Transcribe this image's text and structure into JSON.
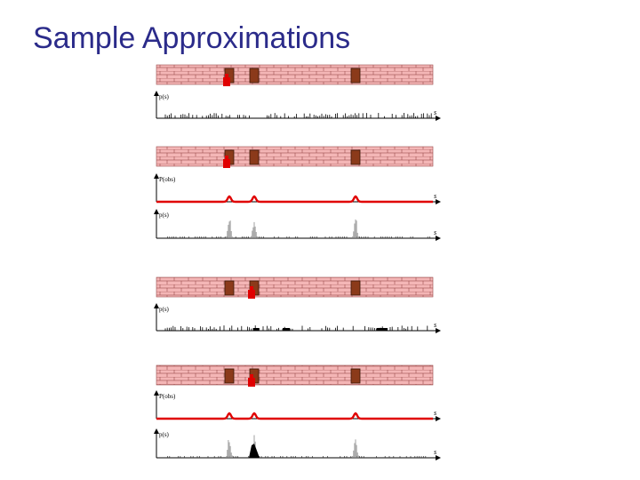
{
  "slide": {
    "title": "Sample Approximations"
  },
  "colors": {
    "title": "#2b2b8a",
    "wall": "#f4b6b6",
    "brick_line": "#9a4a4a",
    "door": "#8b3a1a",
    "robot": "#e00000",
    "observation_curve": "#e00000",
    "samples": "#000000",
    "weighted_samples": "#888888"
  },
  "panels": [
    {
      "step": "initial",
      "robot_icon": "robot-icon",
      "plots": [
        {
          "kind": "samples",
          "ylabel": "p(s)",
          "xlabel": "s",
          "distribution": "uniform"
        }
      ]
    },
    {
      "step": "sense",
      "robot_icon": "robot-icon",
      "plots": [
        {
          "kind": "likelihood",
          "ylabel": "P(obs)",
          "xlabel": "s",
          "peaks_at": "doors"
        },
        {
          "kind": "weighted-samples",
          "ylabel": "p(s)",
          "xlabel": "s"
        }
      ]
    },
    {
      "step": "move",
      "robot_icon": "robot-icon",
      "plots": [
        {
          "kind": "samples",
          "ylabel": "p(s)",
          "xlabel": "s",
          "distribution": "resampled"
        }
      ]
    },
    {
      "step": "sense-again",
      "robot_icon": "robot-icon",
      "plots": [
        {
          "kind": "likelihood",
          "ylabel": "P(obs)",
          "xlabel": "s",
          "peaks_at": "doors"
        },
        {
          "kind": "weighted-samples",
          "ylabel": "p(s)",
          "xlabel": "s"
        }
      ]
    }
  ]
}
